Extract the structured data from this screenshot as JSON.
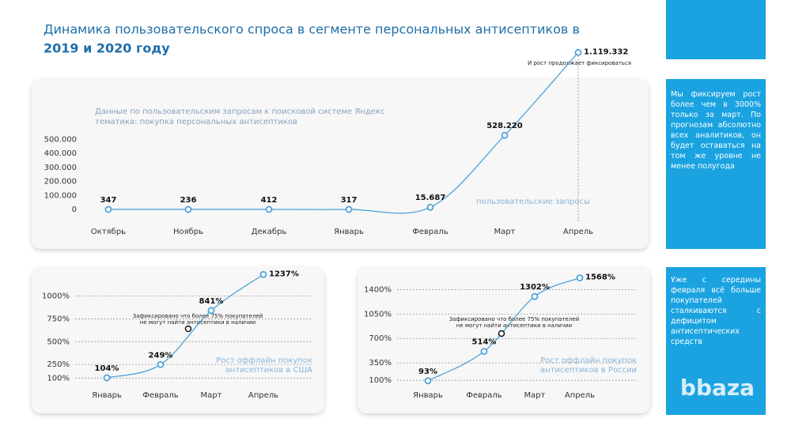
{
  "header": {
    "title": "Динамика пользовательского спроса в сегменте персональных антисептиков в",
    "title_bold": "2019 и 2020 году"
  },
  "chart_data": [
    {
      "type": "line",
      "categories": [
        "Октябрь",
        "Ноябрь",
        "Декабрь",
        "Январь",
        "Февраль",
        "Март",
        "Апрель"
      ],
      "values": [
        347,
        236,
        412,
        317,
        15687,
        528220,
        1119332
      ],
      "value_labels": [
        "347",
        "236",
        "412",
        "317",
        "15.687",
        "528.220",
        "1.119.332"
      ],
      "color": "#4fa3d9",
      "ylim": [
        0,
        1200000
      ],
      "yticks": [
        0,
        {
          "value": 100000,
          "label": "100.000"
        },
        {
          "value": 200000,
          "label": "200.000"
        },
        {
          "value": 300000,
          "label": "300.000"
        },
        {
          "value": 400000,
          "label": "400.000"
        },
        {
          "value": 500000,
          "label": "500.000"
        }
      ],
      "grid": false,
      "annotations": [
        "Данные по пользовательским запросам к поисковой системе Яндекс",
        "тематика: покупка персональных антисептиков",
        "пользовательские запросы",
        "И рост продолжает фиксироваться"
      ]
    },
    {
      "type": "line",
      "categories": [
        "Январь",
        "Февраль",
        "Март",
        "Апрель"
      ],
      "values": [
        104,
        249,
        841,
        1237
      ],
      "value_labels": [
        "104%",
        "249%",
        "841%",
        "1237%"
      ],
      "color": "#4fa3d9",
      "ylim": [
        0,
        1300
      ],
      "yticks": [
        {
          "value": 100,
          "label": "100%"
        },
        {
          "value": 250,
          "label": "250%"
        },
        {
          "value": 500,
          "label": "500%"
        },
        {
          "value": 750,
          "label": "750%"
        },
        {
          "value": 1000,
          "label": "1000%"
        }
      ],
      "grid": true,
      "annotations": [
        "Зафиксировано что более 75% покупателей",
        "не могут найти антисептики в наличии",
        "Рост оффлайн покупок",
        "антисептиков в США"
      ]
    },
    {
      "type": "line",
      "categories": [
        "Январь",
        "Февраль",
        "Март",
        "Апрель"
      ],
      "values": [
        93,
        514,
        1302,
        1568
      ],
      "value_labels": [
        "93%",
        "514%",
        "1302%",
        "1568%"
      ],
      "color": "#4fa3d9",
      "ylim": [
        0,
        1700
      ],
      "yticks": [
        {
          "value": 100,
          "label": "100%"
        },
        {
          "value": 350,
          "label": "350%"
        },
        {
          "value": 700,
          "label": "700%"
        },
        {
          "value": 1050,
          "label": "1050%"
        },
        {
          "value": 1400,
          "label": "1400%"
        }
      ],
      "grid": true,
      "annotations": [
        "Зафиксировано что более 75% покупателей",
        "не могут найти антисептики в наличии",
        "Рост оффлайн покупок",
        "антисептиков в России"
      ]
    }
  ],
  "sidebar": {
    "note1": "Мы фиксируем рост более чем в 3000% только за март. По прогнозам абсолютно всех аналитиков, он будет оставаться на том же уровне не менее полугода",
    "note2": "Уже с середины февраля всё больше покупателей сталкиваются с дефицитом антисептических средств",
    "logo": "bbaza"
  }
}
